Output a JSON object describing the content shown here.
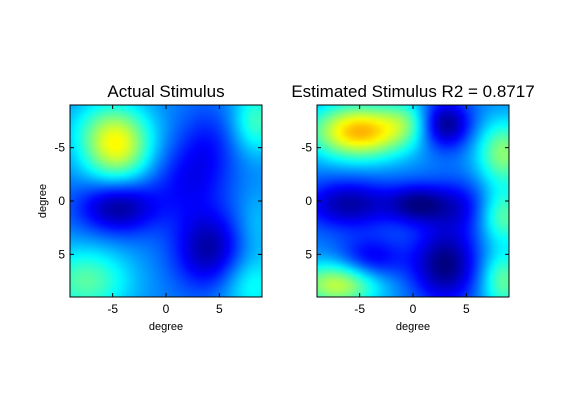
{
  "figure": {
    "background": "#ffffff",
    "colormap": "jet"
  },
  "chart_data": [
    {
      "type": "heatmap",
      "title": "Actual Stimulus",
      "xlabel": "degree",
      "ylabel": "degree",
      "xlim": [
        -9,
        9
      ],
      "ylim": [
        -9,
        9
      ],
      "y_reversed": true,
      "xticks": [
        -5,
        0,
        5
      ],
      "yticks": [
        -5,
        0,
        5
      ],
      "grid": false,
      "value_range": [
        -1,
        1
      ],
      "blobs": [
        {
          "x": -4.6,
          "y": -5.0,
          "amp": 1.35,
          "sx": 2.3,
          "sy": 2.5
        },
        {
          "x": -6.0,
          "y": -7.0,
          "amp": 0.3,
          "sx": 3.0,
          "sy": 2.0
        },
        {
          "x": -4.5,
          "y": 0.5,
          "amp": -0.95,
          "sx": 2.6,
          "sy": 1.8
        },
        {
          "x": 4.0,
          "y": 4.5,
          "amp": -0.85,
          "sx": 2.3,
          "sy": 2.6
        },
        {
          "x": 2.0,
          "y": -2.0,
          "amp": -0.45,
          "sx": 2.5,
          "sy": 2.5
        },
        {
          "x": 4.0,
          "y": -5.5,
          "amp": -0.35,
          "sx": 2.0,
          "sy": 2.5
        },
        {
          "x": 8.5,
          "y": -7.5,
          "amp": 0.75,
          "sx": 1.6,
          "sy": 2.2
        },
        {
          "x": -7.5,
          "y": 7.5,
          "amp": 0.85,
          "sx": 3.0,
          "sy": 2.3
        },
        {
          "x": 8.0,
          "y": 8.0,
          "amp": 0.55,
          "sx": 2.0,
          "sy": 2.0
        },
        {
          "x": 8.5,
          "y": 2.5,
          "amp": 0.3,
          "sx": 1.5,
          "sy": 2.5
        }
      ]
    },
    {
      "type": "heatmap",
      "title": "Estimated Stimulus R2 = 0.8717",
      "xlabel": "degree",
      "ylabel": "",
      "xlim": [
        -9,
        9
      ],
      "ylim": [
        -9,
        9
      ],
      "y_reversed": true,
      "xticks": [
        -5,
        0,
        5
      ],
      "yticks": [
        -5,
        0,
        5
      ],
      "grid": false,
      "value_range": [
        -1,
        1
      ],
      "blobs": [
        {
          "x": -5.0,
          "y": -6.5,
          "amp": 1.8,
          "sx": 3.2,
          "sy": 1.8
        },
        {
          "x": -0.5,
          "y": -7.5,
          "amp": 0.5,
          "sx": 1.6,
          "sy": 1.5
        },
        {
          "x": 3.0,
          "y": -7.2,
          "amp": -1.0,
          "sx": 1.7,
          "sy": 1.6
        },
        {
          "x": 8.5,
          "y": -4.5,
          "amp": 1.05,
          "sx": 1.8,
          "sy": 2.2
        },
        {
          "x": -6.0,
          "y": 0.3,
          "amp": -0.85,
          "sx": 3.0,
          "sy": 1.6
        },
        {
          "x": 0.5,
          "y": 0.3,
          "amp": -0.85,
          "sx": 2.0,
          "sy": 1.3
        },
        {
          "x": 4.5,
          "y": 0.5,
          "amp": -0.5,
          "sx": 2.0,
          "sy": 1.8
        },
        {
          "x": 8.5,
          "y": 1.5,
          "amp": 0.85,
          "sx": 1.6,
          "sy": 1.8
        },
        {
          "x": -4.0,
          "y": 5.5,
          "amp": -0.65,
          "sx": 2.2,
          "sy": 1.5
        },
        {
          "x": 3.0,
          "y": 6.0,
          "amp": -1.0,
          "sx": 2.2,
          "sy": 2.5
        },
        {
          "x": -7.0,
          "y": 7.8,
          "amp": 1.3,
          "sx": 2.8,
          "sy": 1.5
        },
        {
          "x": 8.5,
          "y": 7.5,
          "amp": 0.9,
          "sx": 1.5,
          "sy": 2.0
        }
      ]
    }
  ]
}
